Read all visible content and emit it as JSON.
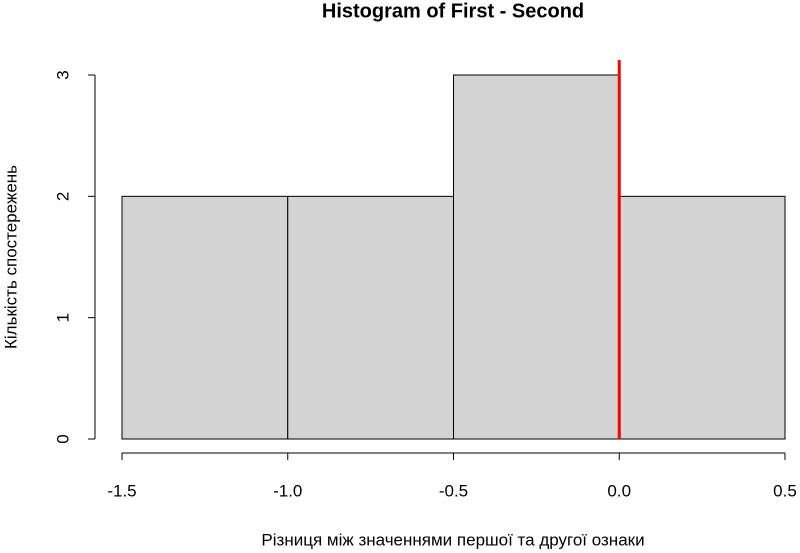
{
  "chart_data": {
    "type": "histogram",
    "title": "Histogram of First - Second",
    "x_label": "Різниця між значеннями першої та другої ознаки",
    "y_label": "Кількість спостережень",
    "bins": [
      -1.5,
      -1,
      -0.5,
      0,
      0.5
    ],
    "values": [
      2,
      2,
      3,
      2
    ],
    "color": "#d3d3d3",
    "xlim": [
      -1.5,
      0.5
    ],
    "ylim": [
      0,
      3
    ],
    "xticks": [
      -1.5,
      {
        "value": -1,
        "label": "-1.0"
      },
      -0.5,
      {
        "value": 0,
        "label": "0.0"
      },
      0.5
    ],
    "yticks": [
      0,
      1,
      2,
      3
    ],
    "vline": 0,
    "vline_color": "#ff0000"
  }
}
